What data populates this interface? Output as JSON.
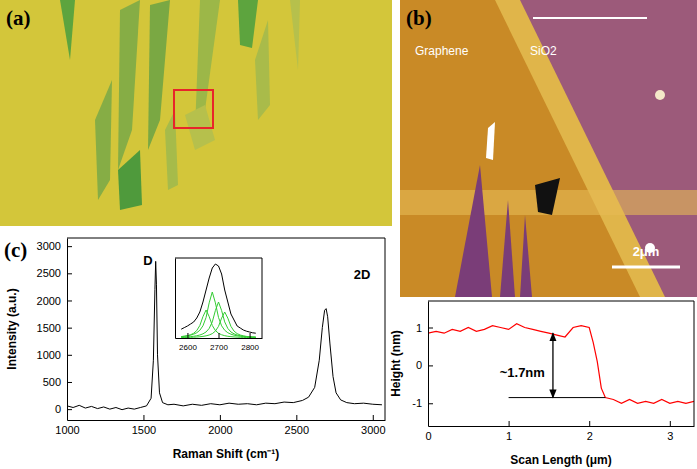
{
  "panels": [
    {
      "label": "(a)"
    },
    {
      "label": "(b)",
      "labels": [
        "Graphene",
        "SiO2"
      ],
      "scale_bar": "2μm"
    }
  ],
  "chart_data": [
    {
      "type": "line",
      "panel_label": "(c)",
      "x_label": "Raman Shift (cm⁻¹)",
      "y_label": "Intensity (a.u.)",
      "xlim": [
        1000,
        3080
      ],
      "ylim": [
        -200,
        3150
      ],
      "xticks": [
        1000,
        1500,
        2000,
        2500,
        3000
      ],
      "yticks": [
        0,
        500,
        1000,
        1500,
        2000,
        2500,
        3000
      ],
      "x": [
        1000,
        1040,
        1080,
        1120,
        1160,
        1200,
        1240,
        1280,
        1320,
        1360,
        1400,
        1440,
        1480,
        1520,
        1550,
        1565,
        1575,
        1580,
        1585,
        1592,
        1605,
        1625,
        1660,
        1700,
        1760,
        1820,
        1880,
        1940,
        2000,
        2060,
        2120,
        2180,
        2240,
        2300,
        2360,
        2420,
        2480,
        2540,
        2580,
        2620,
        2650,
        2670,
        2685,
        2695,
        2705,
        2720,
        2740,
        2760,
        2790,
        2830,
        2880,
        2940,
        3000,
        3060
      ],
      "series": [
        {
          "color": "#000000",
          "values": [
            60,
            30,
            70,
            20,
            50,
            10,
            40,
            0,
            30,
            -10,
            20,
            0,
            30,
            60,
            200,
            900,
            2200,
            2720,
            2300,
            1000,
            300,
            120,
            80,
            90,
            60,
            90,
            70,
            100,
            80,
            110,
            90,
            100,
            80,
            110,
            100,
            130,
            120,
            160,
            220,
            400,
            900,
            1500,
            1820,
            1850,
            1700,
            1200,
            600,
            300,
            170,
            120,
            100,
            110,
            90,
            80
          ]
        }
      ],
      "annotations": [
        {
          "text": "D",
          "x": 1530,
          "y": 2650
        },
        {
          "text": "2D",
          "x": 2930,
          "y": 2400
        }
      ],
      "inset": {
        "type": "line",
        "xlim": [
          2560,
          2840
        ],
        "ylim": [
          0,
          2000
        ],
        "xticks": [
          2600,
          2700,
          2800
        ],
        "tick_labels": "x",
        "x": [
          2580,
          2590,
          2600,
          2610,
          2620,
          2630,
          2640,
          2650,
          2660,
          2670,
          2680,
          2690,
          2700,
          2710,
          2720,
          2730,
          2740,
          2750,
          2760,
          2770,
          2780,
          2790,
          2800,
          2810,
          2820
        ],
        "series": [
          {
            "color": "#000000",
            "values": [
              220,
              260,
              300,
              350,
              400,
              500,
              650,
              900,
              1200,
              1500,
              1750,
              1850,
              1800,
              1600,
              1200,
              900,
              600,
              450,
              300,
              250,
              200,
              170,
              150,
              130,
              120
            ]
          },
          {
            "color": "#33cc33",
            "values": [
              34,
              43,
              58,
              81,
              118,
              186,
              313,
              535,
              700,
              535,
              313,
              186,
              118,
              81,
              58,
              43,
              34,
              27,
              22,
              18,
              15,
              13,
              11,
              10,
              8
            ]
          },
          {
            "color": "#33cc33",
            "values": [
              36,
              44,
              55,
              71,
              95,
              132,
              193,
              305,
              514,
              879,
              1150,
              879,
              514,
              305,
              193,
              132,
              95,
              71,
              55,
              44,
              36,
              30,
              25,
              22,
              18
            ]
          },
          {
            "color": "#33cc33",
            "values": [
              20,
              23,
              28,
              34,
              43,
              56,
              75,
              104,
              151,
              239,
              402,
              688,
              900,
              688,
              402,
              239,
              151,
              104,
              75,
              56,
              43,
              34,
              28,
              23,
              20
            ]
          },
          {
            "color": "#33cc33",
            "values": [
              10,
              12,
              14,
              17,
              20,
              25,
              31,
              40,
              54,
              75,
              109,
              172,
              291,
              497,
              650,
              497,
              291,
              172,
              109,
              75,
              54,
              40,
              31,
              25,
              20
            ]
          }
        ]
      }
    },
    {
      "type": "line",
      "x_label": "Scan Length (μm)",
      "y_label": "Height (nm)",
      "xlim": [
        0,
        3.3
      ],
      "ylim": [
        -1.6,
        1.7
      ],
      "xticks": [
        0,
        1,
        2,
        3
      ],
      "yticks": [
        -1,
        0,
        1
      ],
      "x": [
        0,
        0.1,
        0.2,
        0.3,
        0.4,
        0.5,
        0.6,
        0.7,
        0.8,
        0.9,
        1.0,
        1.1,
        1.2,
        1.3,
        1.4,
        1.5,
        1.6,
        1.7,
        1.8,
        1.9,
        2.0,
        2.05,
        2.1,
        2.15,
        2.2,
        2.3,
        2.4,
        2.5,
        2.6,
        2.7,
        2.8,
        2.9,
        3.0,
        3.1,
        3.2,
        3.3
      ],
      "series": [
        {
          "color": "#ff0000",
          "values": [
            0.85,
            0.9,
            0.85,
            0.95,
            0.9,
            1.0,
            0.9,
            0.95,
            1.05,
            1.0,
            0.95,
            1.1,
            1.0,
            0.95,
            0.9,
            0.85,
            0.8,
            0.75,
            1.0,
            1.05,
            1.0,
            0.6,
            0.1,
            -0.6,
            -0.85,
            -0.9,
            -1.0,
            -0.9,
            -1.0,
            -0.95,
            -1.0,
            -0.9,
            -1.0,
            -0.95,
            -1.0,
            -0.95
          ]
        }
      ],
      "annotations": [
        {
          "text": "~1.7nm",
          "x": 1.45,
          "y": -0.3
        }
      ],
      "arrow": {
        "x": 1.55,
        "y": [
          0.85,
          -0.85
        ]
      },
      "reference_line": {
        "x": [
          1.0,
          2.2
        ],
        "y": -0.85
      }
    }
  ]
}
